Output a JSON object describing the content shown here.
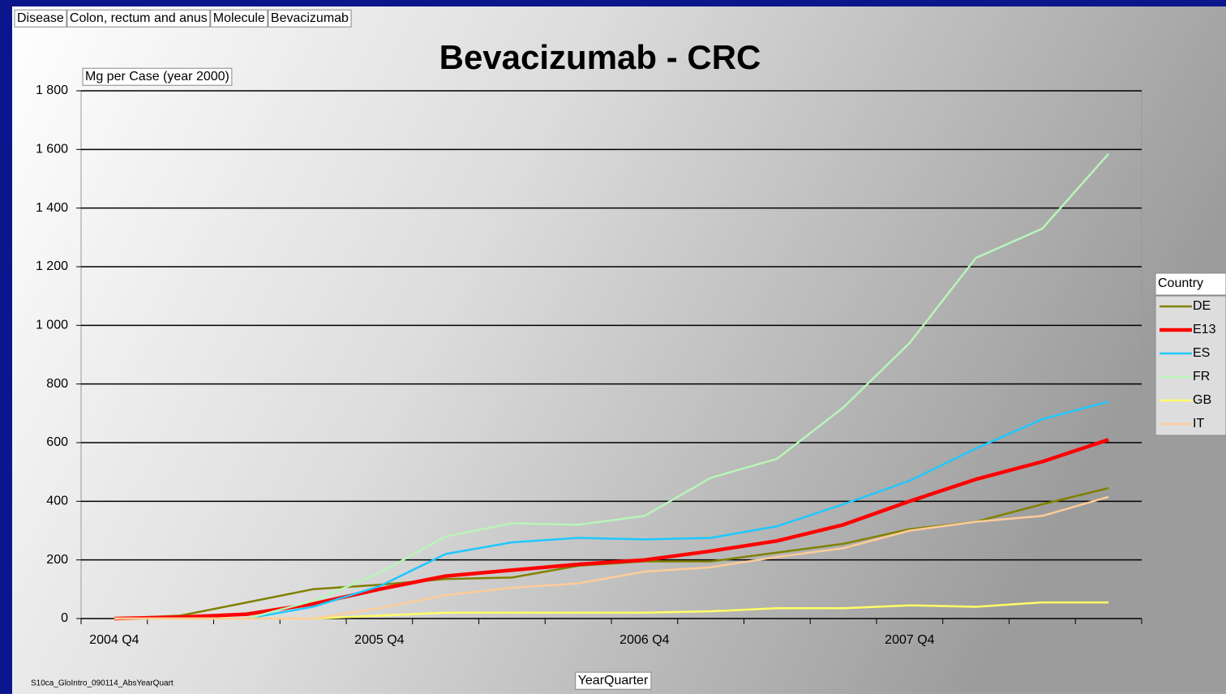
{
  "chart_data": {
    "type": "line",
    "title": "Bevacizumab - CRC",
    "filters": [
      "Disease",
      "Colon, rectum and anus",
      "Molecule",
      "Bevacizumab"
    ],
    "y_label": "Mg per Case (year 2000)",
    "x_label": "YearQuarter",
    "footnote": "S10ca_GloIntro_090114_AbsYearQuart",
    "legend_title": "Country",
    "legend": "right",
    "grid": true,
    "categories": [
      "2004 Q4",
      null,
      null,
      null,
      "2005 Q4",
      null,
      null,
      null,
      "2006 Q4",
      null,
      null,
      null,
      "2007 Q4",
      null,
      null,
      null
    ],
    "ylim": [
      0,
      1800
    ],
    "yticks": [
      0,
      200,
      400,
      600,
      800,
      {
        "value": 1000,
        "label": "1 000"
      },
      {
        "value": 1200,
        "label": "1 200"
      },
      {
        "value": 1400,
        "label": "1 400"
      },
      {
        "value": 1600,
        "label": "1 600"
      },
      {
        "value": 1800,
        "label": "1 800"
      }
    ],
    "series": [
      {
        "name": "DE",
        "color": "#808000",
        "width": 2.5,
        "values": [
          0,
          10,
          55,
          100,
          115,
          135,
          140,
          180,
          195,
          195,
          225,
          255,
          305,
          330,
          390,
          445
        ]
      },
      {
        "name": "E13",
        "color": "#ff0000",
        "width": 4.5,
        "values": [
          0,
          5,
          15,
          50,
          100,
          145,
          165,
          185,
          200,
          230,
          265,
          320,
          400,
          475,
          535,
          610
        ]
      },
      {
        "name": "ES",
        "color": "#1ec8ff",
        "width": 2.5,
        "values": [
          0,
          0,
          0,
          40,
          110,
          220,
          260,
          275,
          270,
          275,
          315,
          390,
          470,
          580,
          680,
          740
        ]
      },
      {
        "name": "FR",
        "color": "#b8f5b8",
        "width": 2.5,
        "values": [
          0,
          0,
          0,
          60,
          155,
          280,
          325,
          320,
          350,
          480,
          545,
          720,
          940,
          1230,
          1330,
          1585
        ]
      },
      {
        "name": "GB",
        "color": "#ffff66",
        "width": 2.5,
        "values": [
          0,
          0,
          0,
          0,
          10,
          20,
          20,
          20,
          20,
          25,
          35,
          35,
          45,
          40,
          55,
          55
        ]
      },
      {
        "name": "IT",
        "color": "#ffcc99",
        "width": 2.5,
        "values": [
          0,
          0,
          0,
          0,
          35,
          80,
          105,
          120,
          160,
          175,
          210,
          240,
          300,
          330,
          350,
          415
        ]
      }
    ]
  }
}
